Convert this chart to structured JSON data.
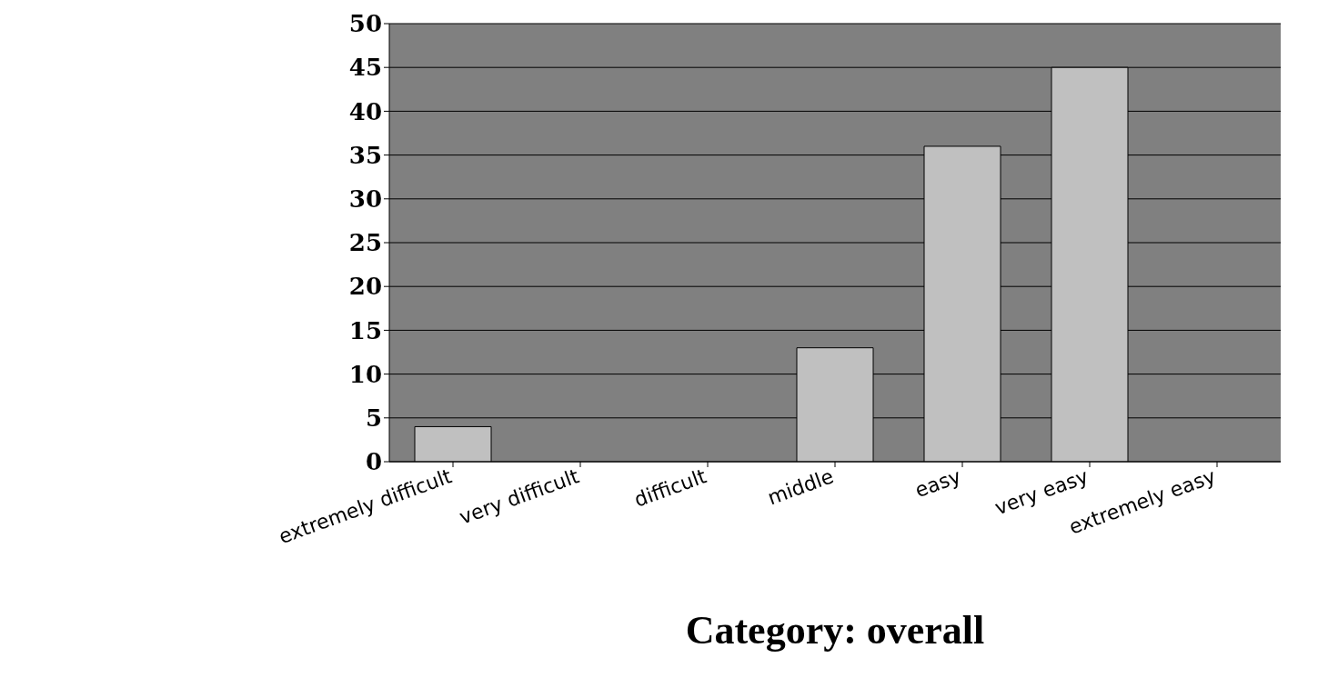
{
  "chart_data": {
    "type": "bar",
    "xlabel": "Category: overall",
    "categories": [
      "extremely difficult",
      "very difficult",
      "difficult",
      "middle",
      "easy",
      "very easy",
      "extremely easy"
    ],
    "values": [
      4,
      0,
      0,
      13,
      36,
      45,
      0
    ],
    "color": "#c0c0c0",
    "ylim": [
      0,
      50
    ],
    "yticks": [
      0,
      5,
      10,
      15,
      20,
      25,
      30,
      35,
      40,
      45,
      50
    ],
    "grid": "y"
  }
}
